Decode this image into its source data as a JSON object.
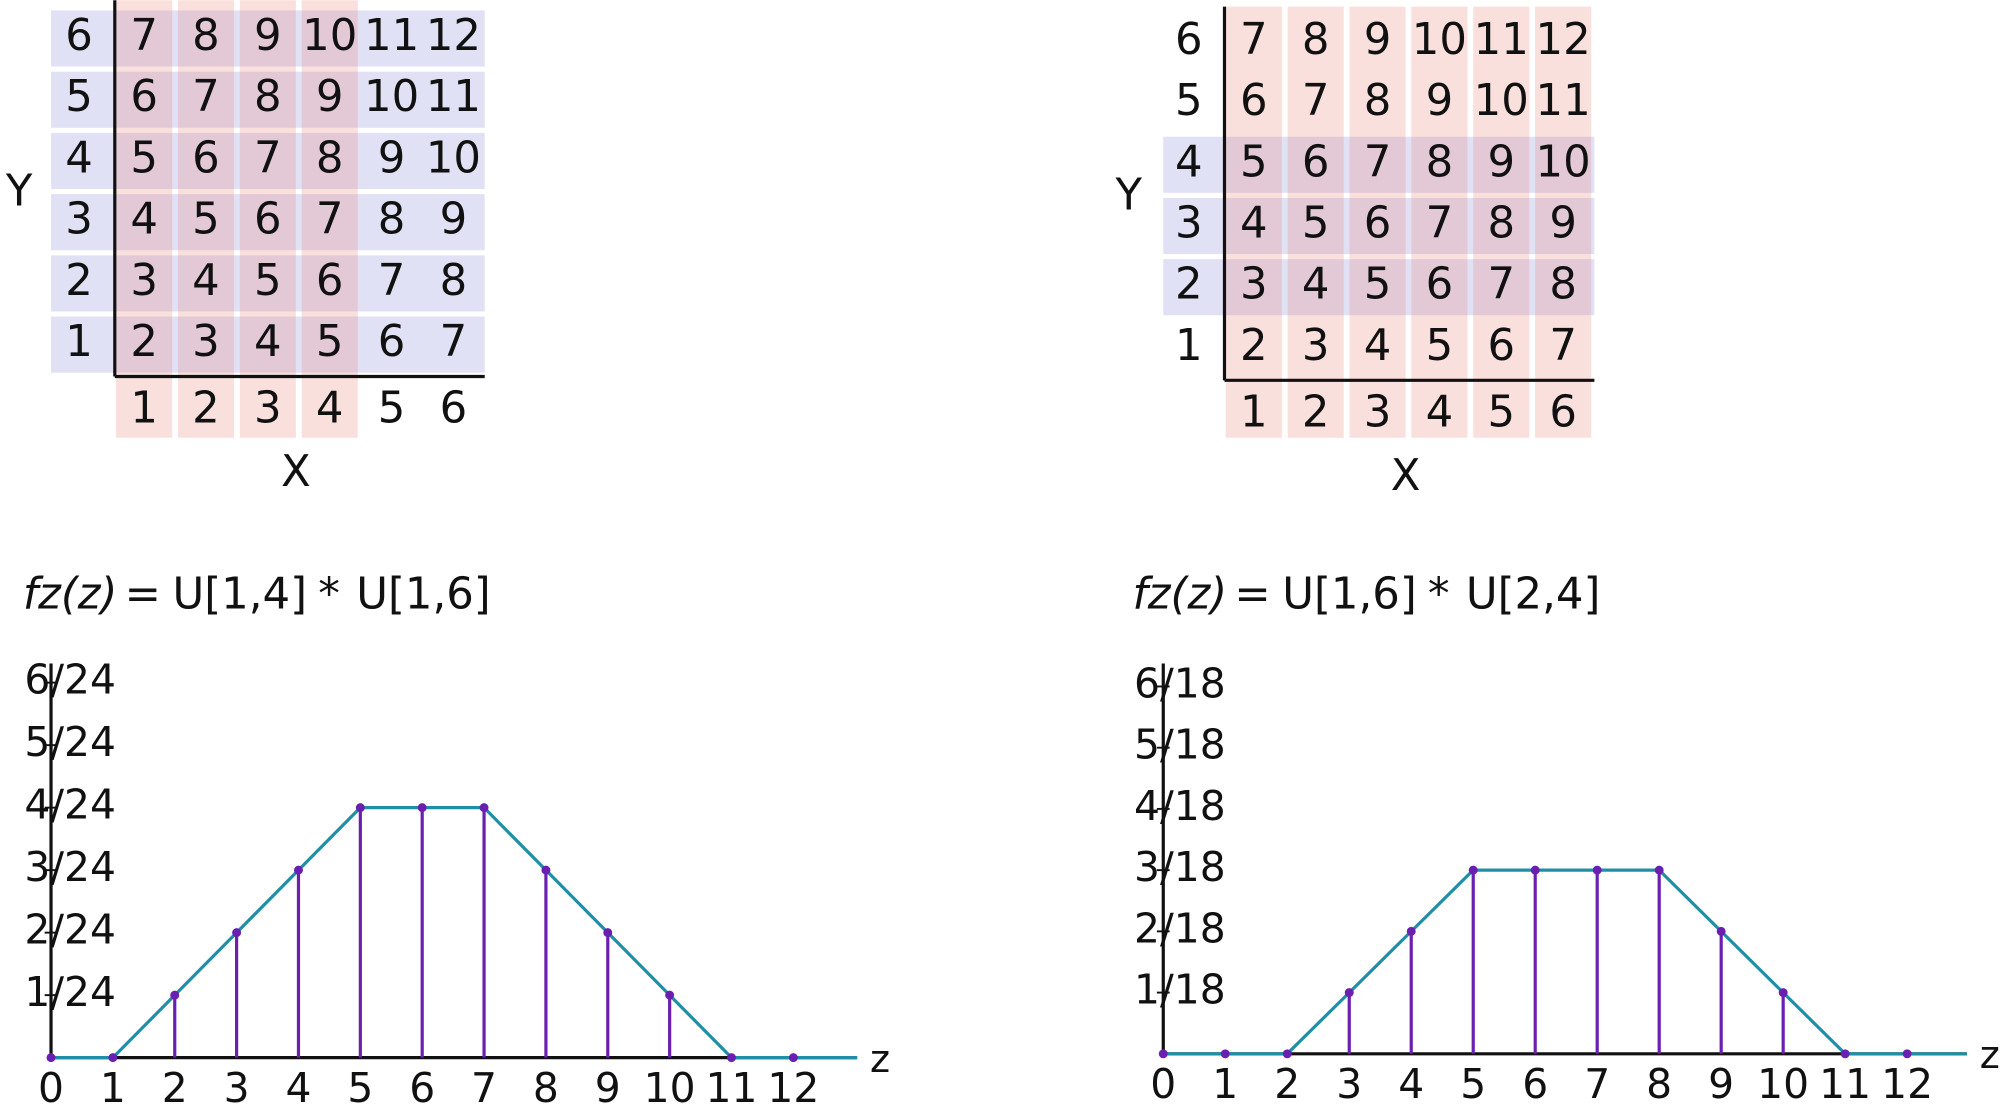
{
  "grids": [
    {
      "y_label": "Y",
      "x_label": "X",
      "row_labels": [
        "6",
        "5",
        "4",
        "3",
        "2",
        "1"
      ],
      "column_labels": [
        "1",
        "2",
        "3",
        "4",
        "5",
        "6"
      ],
      "cells": [
        [
          "7",
          "8",
          "9",
          "10",
          "11",
          "12"
        ],
        [
          "6",
          "7",
          "8",
          "9",
          "10",
          "11"
        ],
        [
          "5",
          "6",
          "7",
          "8",
          "9",
          "10"
        ],
        [
          "4",
          "5",
          "6",
          "7",
          "8",
          "9"
        ],
        [
          "3",
          "4",
          "5",
          "6",
          "7",
          "8"
        ],
        [
          "2",
          "3",
          "4",
          "5",
          "6",
          "7"
        ]
      ],
      "highlight_rows": [
        true,
        true,
        true,
        true,
        true,
        true
      ],
      "highlight_columns": [
        true,
        true,
        true,
        true,
        false,
        false
      ]
    },
    {
      "y_label": "Y",
      "x_label": "X",
      "row_labels": [
        "6",
        "5",
        "4",
        "3",
        "2",
        "1"
      ],
      "column_labels": [
        "1",
        "2",
        "3",
        "4",
        "5",
        "6"
      ],
      "cells": [
        [
          "7",
          "8",
          "9",
          "10",
          "11",
          "12"
        ],
        [
          "6",
          "7",
          "8",
          "9",
          "10",
          "11"
        ],
        [
          "5",
          "6",
          "7",
          "8",
          "9",
          "10"
        ],
        [
          "4",
          "5",
          "6",
          "7",
          "8",
          "9"
        ],
        [
          "3",
          "4",
          "5",
          "6",
          "7",
          "8"
        ],
        [
          "2",
          "3",
          "4",
          "5",
          "6",
          "7"
        ]
      ],
      "highlight_rows": [
        false,
        false,
        true,
        true,
        true,
        false
      ],
      "highlight_columns": [
        true,
        true,
        true,
        true,
        true,
        true
      ]
    }
  ],
  "plots": [
    {
      "lhs": "fz(z)",
      "equals": "=",
      "first": "U[1,4]",
      "op": "*",
      "second": "U[1,6]",
      "x_label": "z",
      "x": [
        0,
        1,
        2,
        3,
        4,
        5,
        6,
        7,
        8,
        9,
        10,
        11,
        12
      ],
      "values": [
        0,
        0,
        1,
        2,
        3,
        4,
        4,
        4,
        3,
        2,
        1,
        0,
        0
      ],
      "yticks": [
        {
          "value": 1,
          "label": "1/24"
        },
        {
          "value": 2,
          "label": "2/24"
        },
        {
          "value": 3,
          "label": "3/24"
        },
        {
          "value": 4,
          "label": "4/24"
        },
        {
          "value": 5,
          "label": "5/24"
        },
        {
          "value": 6,
          "label": "6/24"
        }
      ]
    },
    {
      "lhs": "fz(z)",
      "equals": "=",
      "first": "U[1,6]",
      "op": "*",
      "second": "U[2,4]",
      "x_label": "z",
      "x": [
        0,
        1,
        2,
        3,
        4,
        5,
        6,
        7,
        8,
        9,
        10,
        11,
        12
      ],
      "values": [
        0,
        0,
        0,
        1,
        2,
        3,
        3,
        3,
        3,
        2,
        1,
        0,
        0
      ],
      "yticks": [
        {
          "value": 1,
          "label": "1/18"
        },
        {
          "value": 2,
          "label": "2/18"
        },
        {
          "value": 3,
          "label": "3/18"
        },
        {
          "value": 4,
          "label": "4/18"
        },
        {
          "value": 5,
          "label": "5/18"
        },
        {
          "value": 6,
          "label": "6/18"
        }
      ]
    }
  ]
}
